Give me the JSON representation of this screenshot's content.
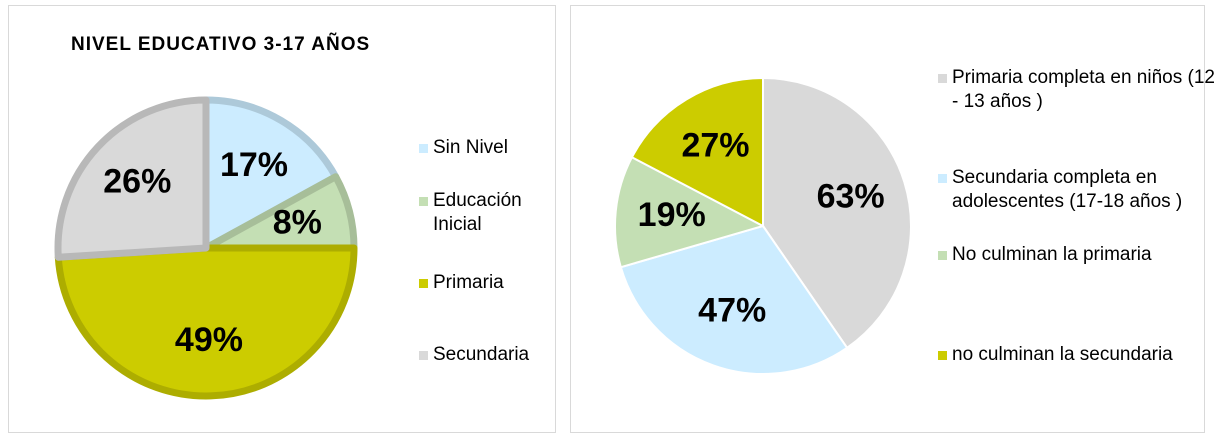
{
  "chart_data": [
    {
      "type": "pie",
      "title": "NIVEL EDUCATIVO  3-17 AÑOS",
      "categories": [
        "Sin Nivel",
        "Educación Inicial",
        "Primaria",
        "Secundaria"
      ],
      "values": [
        17,
        8,
        49,
        26
      ],
      "value_labels": [
        "17%",
        "8%",
        "49%",
        "26%"
      ],
      "colors": [
        "#ccecff",
        "#c4dfb4",
        "#cccc00",
        "#d9d9d9"
      ],
      "legend": "right"
    },
    {
      "type": "pie",
      "categories": [
        "Primaria completa en niños (12 - 13 años )",
        "Secundaria completa en adolescentes (17-18 años )",
        "No culminan la primaria",
        "no culminan la secundaria"
      ],
      "values": [
        63,
        47,
        19,
        27
      ],
      "value_labels": [
        "63%",
        "47%",
        "19%",
        "27%"
      ],
      "colors": [
        "#d9d9d9",
        "#ccecff",
        "#c4dfb4",
        "#cccc00"
      ],
      "legend": "right"
    }
  ]
}
